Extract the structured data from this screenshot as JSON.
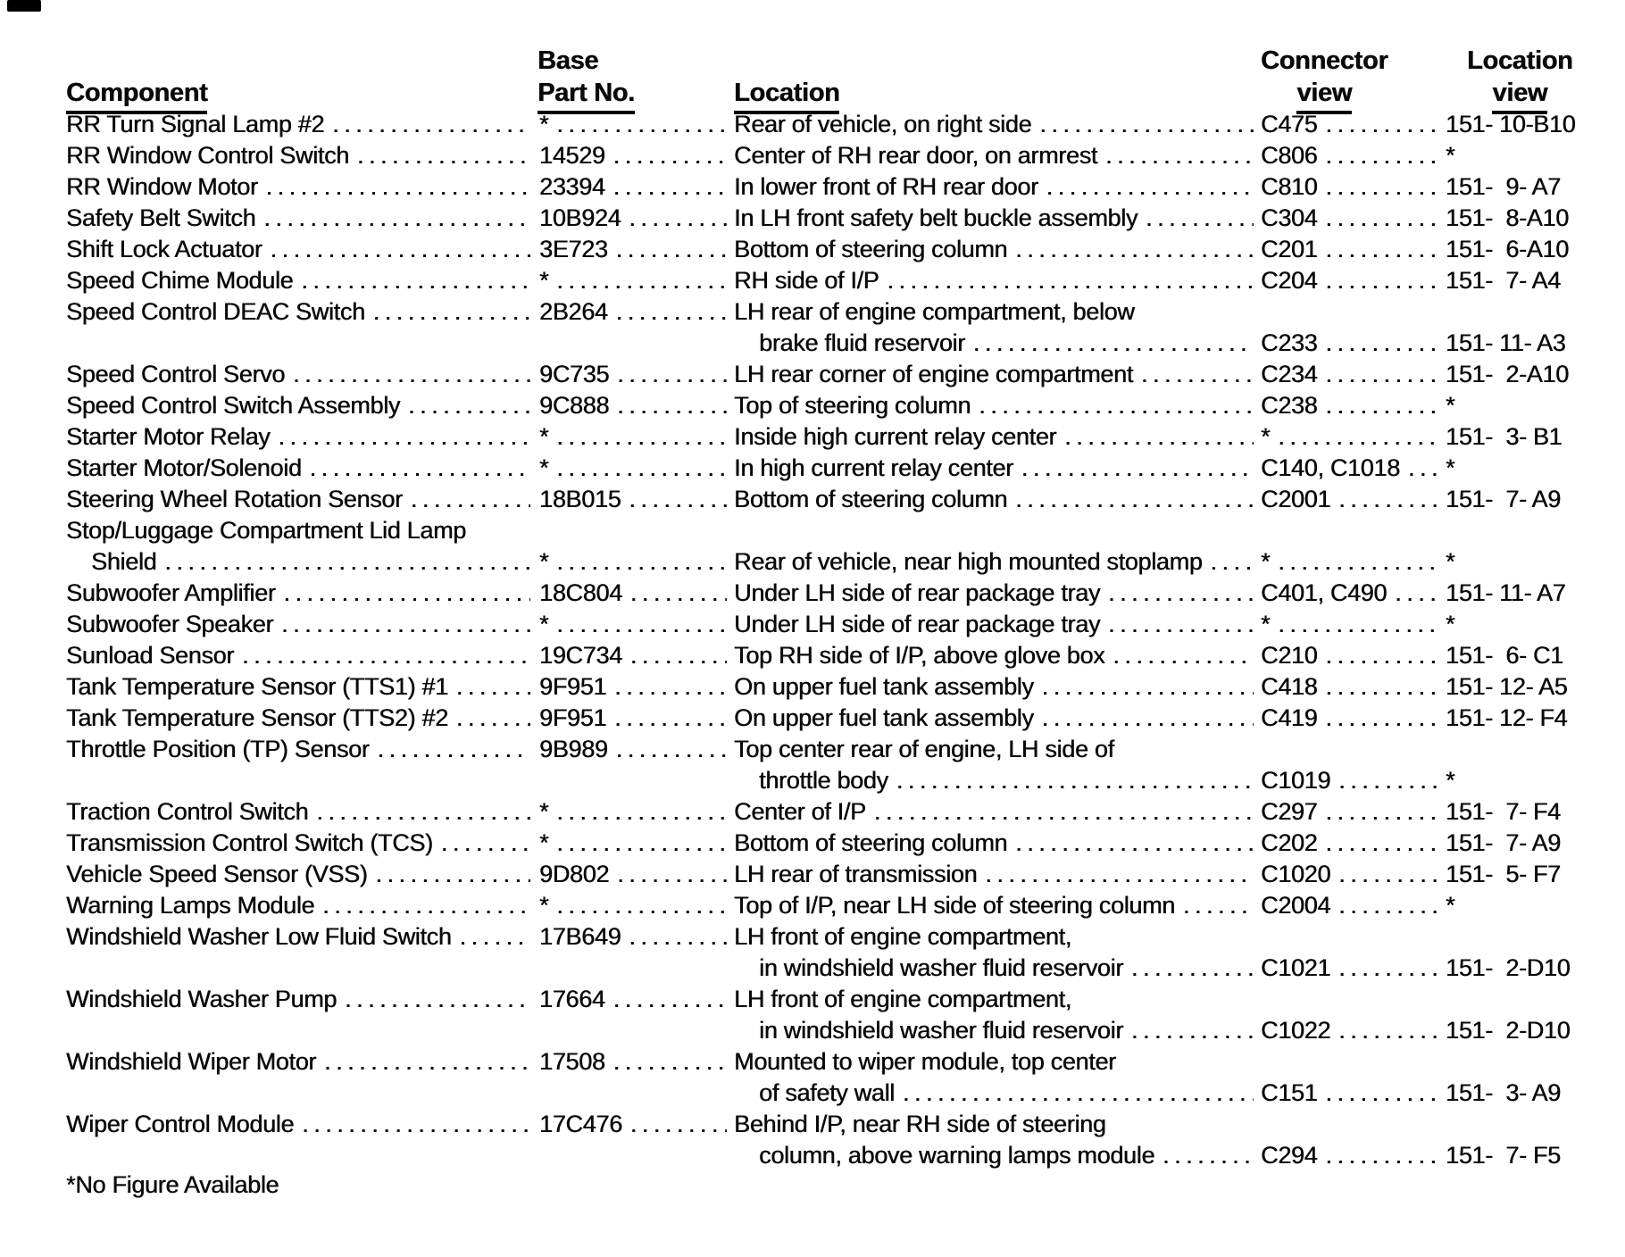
{
  "headers": {
    "component": "Component",
    "base_line1": "Base",
    "base_line2": "Part No.",
    "location": "Location",
    "connector_line1": "Connector",
    "connector_line2": "view",
    "locview_line1": "Location",
    "locview_line2": "view"
  },
  "table": {
    "lines": [
      {
        "component": "RR Turn Signal Lamp #2",
        "comp_dots": true,
        "part": "*",
        "part_dots": true,
        "location": "Rear of vehicle, on right side",
        "loc_dots": true,
        "connector": "C475",
        "conn_dots": true,
        "view": "151- 10-B10"
      },
      {
        "component": "RR Window Control Switch",
        "comp_dots": true,
        "part": "14529",
        "part_dots": true,
        "location": "Center of RH rear door, on armrest",
        "loc_dots": true,
        "connector": "C806",
        "conn_dots": true,
        "view": "*"
      },
      {
        "component": "RR Window Motor",
        "comp_dots": true,
        "part": "23394",
        "part_dots": true,
        "location": "In lower front of RH rear door",
        "loc_dots": true,
        "connector": "C810",
        "conn_dots": true,
        "view": "151-  9- A7"
      },
      {
        "component": "Safety Belt Switch",
        "comp_dots": true,
        "part": "10B924",
        "part_dots": true,
        "location": "In LH front safety belt buckle assembly",
        "loc_dots": true,
        "connector": "C304",
        "conn_dots": true,
        "view": "151-  8-A10"
      },
      {
        "component": "Shift Lock Actuator",
        "comp_dots": true,
        "part": "3E723",
        "part_dots": true,
        "location": "Bottom of steering column",
        "loc_dots": true,
        "connector": "C201",
        "conn_dots": true,
        "view": "151-  6-A10"
      },
      {
        "component": "Speed Chime Module",
        "comp_dots": true,
        "part": "*",
        "part_dots": true,
        "location": "RH side of I/P",
        "loc_dots": true,
        "connector": "C204",
        "conn_dots": true,
        "view": "151-  7- A4"
      },
      {
        "component": "Speed Control DEAC Switch",
        "comp_dots": true,
        "part": "2B264",
        "part_dots": true,
        "location": "LH rear of engine compartment, below",
        "loc_dots": false,
        "connector": "",
        "conn_dots": false,
        "view": ""
      },
      {
        "component": "",
        "comp_dots": false,
        "part": "",
        "part_dots": false,
        "location": "brake fluid reservoir",
        "loc_indent": true,
        "loc_dots": true,
        "connector": "C233",
        "conn_dots": true,
        "view": "151- 11- A3"
      },
      {
        "component": "Speed Control Servo",
        "comp_dots": true,
        "part": "9C735",
        "part_dots": true,
        "location": "LH rear corner of engine compartment",
        "loc_dots": true,
        "connector": "C234",
        "conn_dots": true,
        "view": "151-  2-A10"
      },
      {
        "component": "Speed Control Switch Assembly",
        "comp_dots": true,
        "part": "9C888",
        "part_dots": true,
        "location": "Top of steering column",
        "loc_dots": true,
        "connector": "C238",
        "conn_dots": true,
        "view": "*"
      },
      {
        "component": "Starter Motor Relay",
        "comp_dots": true,
        "part": "*",
        "part_dots": true,
        "location": "Inside high current relay center",
        "loc_dots": true,
        "connector": "*",
        "conn_dots": true,
        "view": "151-  3- B1"
      },
      {
        "component": "Starter Motor/Solenoid",
        "comp_dots": true,
        "part": "*",
        "part_dots": true,
        "location": "In high current relay center",
        "loc_dots": true,
        "connector": "C140, C1018",
        "conn_dots": true,
        "view": "*"
      },
      {
        "component": "Steering Wheel Rotation Sensor",
        "comp_dots": true,
        "part": "18B015",
        "part_dots": true,
        "location": "Bottom of steering column",
        "loc_dots": true,
        "connector": "C2001",
        "conn_dots": true,
        "view": "151-  7- A9"
      },
      {
        "component": "Stop/Luggage Compartment Lid Lamp",
        "comp_dots": false,
        "part": "",
        "part_dots": false,
        "location": "",
        "loc_dots": false,
        "connector": "",
        "conn_dots": false,
        "view": ""
      },
      {
        "component": "Shield",
        "comp_indent": true,
        "comp_dots": true,
        "part": "*",
        "part_dots": true,
        "location": "Rear of vehicle, near high mounted stoplamp",
        "loc_dots": true,
        "connector": "*",
        "conn_dots": true,
        "view": "*"
      },
      {
        "component": "Subwoofer Amplifier",
        "comp_dots": true,
        "part": "18C804",
        "part_dots": true,
        "location": "Under LH side of rear package tray",
        "loc_dots": true,
        "connector": "C401, C490",
        "conn_dots": true,
        "view": "151- 11- A7"
      },
      {
        "component": "Subwoofer Speaker",
        "comp_dots": true,
        "part": "*",
        "part_dots": true,
        "location": "Under LH side of rear package tray",
        "loc_dots": true,
        "connector": "*",
        "conn_dots": true,
        "view": "*"
      },
      {
        "component": "Sunload Sensor",
        "comp_dots": true,
        "part": "19C734",
        "part_dots": true,
        "location": "Top RH side of I/P, above glove box",
        "loc_dots": true,
        "connector": "C210",
        "conn_dots": true,
        "view": "151-  6- C1"
      },
      {
        "component": "Tank Temperature Sensor (TTS1) #1",
        "comp_dots": true,
        "part": "9F951",
        "part_dots": true,
        "location": "On upper fuel tank assembly",
        "loc_dots": true,
        "connector": "C418",
        "conn_dots": true,
        "view": "151- 12- A5"
      },
      {
        "component": "Tank Temperature Sensor (TTS2) #2",
        "comp_dots": true,
        "part": "9F951",
        "part_dots": true,
        "location": "On upper fuel tank assembly",
        "loc_dots": true,
        "connector": "C419",
        "conn_dots": true,
        "view": "151- 12- F4"
      },
      {
        "component": "Throttle Position (TP) Sensor",
        "comp_dots": true,
        "part": "9B989",
        "part_dots": true,
        "location": "Top center rear of engine, LH side of",
        "loc_dots": false,
        "connector": "",
        "conn_dots": false,
        "view": ""
      },
      {
        "component": "",
        "comp_dots": false,
        "part": "",
        "part_dots": false,
        "location": "throttle body",
        "loc_indent": true,
        "loc_dots": true,
        "connector": "C1019",
        "conn_dots": true,
        "view": "*"
      },
      {
        "component": "Traction Control Switch",
        "comp_dots": true,
        "part": "*",
        "part_dots": true,
        "location": "Center of I/P",
        "loc_dots": true,
        "connector": "C297",
        "conn_dots": true,
        "view": "151-  7- F4"
      },
      {
        "component": "Transmission Control Switch (TCS)",
        "comp_dots": true,
        "part": "*",
        "part_dots": true,
        "location": "Bottom of steering column",
        "loc_dots": true,
        "connector": "C202",
        "conn_dots": true,
        "view": "151-  7- A9"
      },
      {
        "component": "Vehicle Speed Sensor (VSS)",
        "comp_dots": true,
        "part": "9D802",
        "part_dots": true,
        "location": "LH rear of transmission",
        "loc_dots": true,
        "connector": "C1020",
        "conn_dots": true,
        "view": "151-  5- F7"
      },
      {
        "component": "Warning Lamps Module",
        "comp_dots": true,
        "part": "*",
        "part_dots": true,
        "location": "Top of I/P, near LH side of steering column",
        "loc_dots": true,
        "connector": "C2004",
        "conn_dots": true,
        "view": "*"
      },
      {
        "component": "Windshield Washer Low Fluid Switch",
        "comp_dots": true,
        "part": "17B649",
        "part_dots": true,
        "location": "LH front of engine compartment,",
        "loc_dots": false,
        "connector": "",
        "conn_dots": false,
        "view": ""
      },
      {
        "component": "",
        "comp_dots": false,
        "part": "",
        "part_dots": false,
        "location": "in windshield washer fluid reservoir",
        "loc_indent": true,
        "loc_dots": true,
        "connector": "C1021",
        "conn_dots": true,
        "view": "151-  2-D10"
      },
      {
        "component": "Windshield Washer Pump",
        "comp_dots": true,
        "part": "17664",
        "part_dots": true,
        "location": "LH front of engine compartment,",
        "loc_dots": false,
        "connector": "",
        "conn_dots": false,
        "view": ""
      },
      {
        "component": "",
        "comp_dots": false,
        "part": "",
        "part_dots": false,
        "location": "in windshield washer fluid reservoir",
        "loc_indent": true,
        "loc_dots": true,
        "connector": "C1022",
        "conn_dots": true,
        "view": "151-  2-D10"
      },
      {
        "component": "Windshield Wiper Motor",
        "comp_dots": true,
        "part": "17508",
        "part_dots": true,
        "location": "Mounted to wiper module, top center",
        "loc_dots": false,
        "connector": "",
        "conn_dots": false,
        "view": ""
      },
      {
        "component": "",
        "comp_dots": false,
        "part": "",
        "part_dots": false,
        "location": "of safety wall",
        "loc_indent": true,
        "loc_dots": true,
        "connector": "C151",
        "conn_dots": true,
        "view": "151-  3- A9"
      },
      {
        "component": "Wiper Control Module",
        "comp_dots": true,
        "part": "17C476",
        "part_dots": true,
        "location": "Behind I/P, near RH side of steering",
        "loc_dots": false,
        "connector": "",
        "conn_dots": false,
        "view": ""
      },
      {
        "component": "",
        "comp_dots": false,
        "part": "",
        "part_dots": false,
        "location": "column, above warning lamps module",
        "loc_indent": true,
        "loc_dots": true,
        "connector": "C294",
        "conn_dots": true,
        "view": "151-  7- F5"
      }
    ]
  },
  "page": {
    "footnote": "*No Figure Available"
  }
}
